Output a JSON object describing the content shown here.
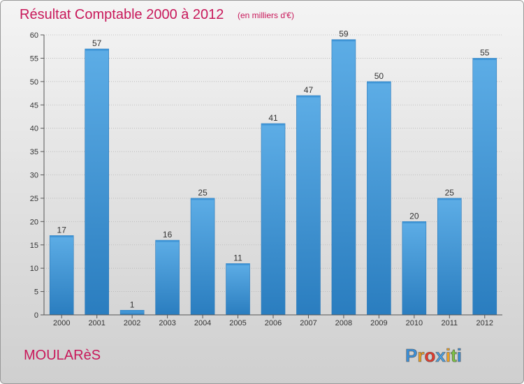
{
  "chart_data": {
    "type": "bar",
    "title": "Résultat Comptable 2000 à 2012",
    "subtitle": "(en milliers d'€)",
    "categories": [
      "2000",
      "2001",
      "2002",
      "2003",
      "2004",
      "2005",
      "2006",
      "2007",
      "2008",
      "2009",
      "2010",
      "2011",
      "2012"
    ],
    "values": [
      17,
      57,
      1,
      16,
      25,
      11,
      41,
      47,
      59,
      50,
      20,
      25,
      55
    ],
    "ylim": [
      0,
      60
    ],
    "yticks": [
      0,
      5,
      10,
      15,
      20,
      25,
      30,
      35,
      40,
      45,
      50,
      55,
      60
    ],
    "xlabel": "",
    "ylabel": "",
    "grid": true
  },
  "footer": {
    "place_name": "MOULARèS",
    "brand": "Proxiti"
  },
  "colors": {
    "title": "#c8185a",
    "bar_light": "#5dade6",
    "bar_dark": "#2a7dbf",
    "grid": "#bbbbbb"
  }
}
